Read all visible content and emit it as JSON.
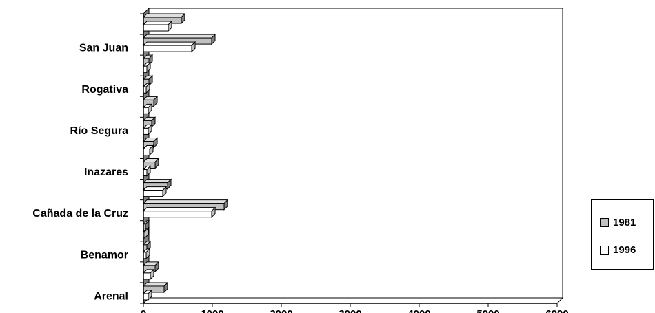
{
  "chart_data": {
    "type": "bar",
    "orientation": "horizontal",
    "three_d": true,
    "title": "",
    "xlabel": "",
    "ylabel": "",
    "xlim": [
      0,
      6000
    ],
    "x_ticks": [
      "0",
      "1000",
      "2000",
      "3000",
      "4000",
      "5000",
      "6000"
    ],
    "category_labels": [
      "San Juan",
      "Rogativa",
      "Río Segura",
      "Inazares",
      "Cañada de la Cruz",
      "Benamor",
      "Arenal"
    ],
    "categories": [
      "Arenal",
      "",
      "Benamor",
      "",
      "Cañada de la Cruz",
      "",
      "Inazares",
      "",
      "Río Segura",
      "",
      "Rogativa",
      "",
      "San Juan",
      ""
    ],
    "series": [
      {
        "name": "1981",
        "color": "#c0c0c0",
        "values": [
          300,
          170,
          50,
          30,
          1170,
          350,
          170,
          150,
          120,
          150,
          80,
          80,
          990,
          550
        ]
      },
      {
        "name": "1996",
        "color": "#ffffff",
        "values": [
          70,
          100,
          40,
          20,
          990,
          280,
          50,
          90,
          70,
          70,
          40,
          50,
          700,
          360
        ]
      }
    ],
    "grid": false,
    "legend_position": "right"
  }
}
